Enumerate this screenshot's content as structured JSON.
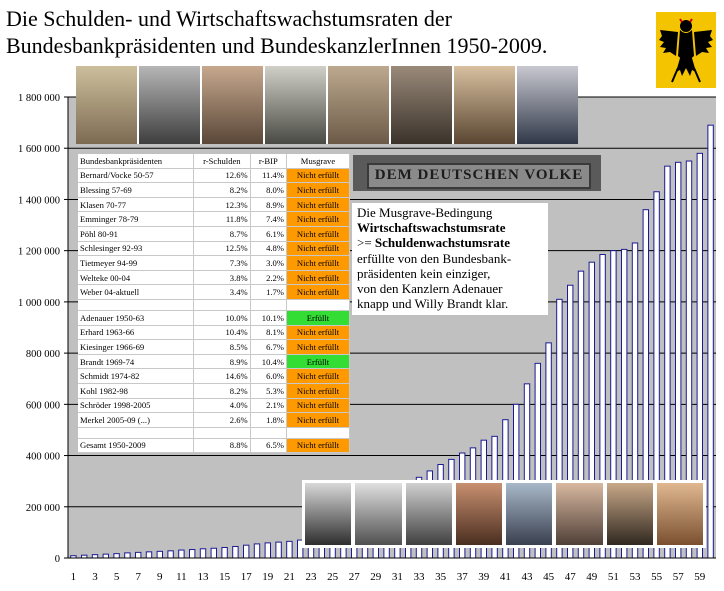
{
  "title_line1": "Die Schulden- und Wirtschaftswachstumsraten der",
  "title_line2": "Bundesbankpräsidenten und BundeskanzlerInnen 1950-2009.",
  "icons": {
    "coat_of_arms": "german-eagle-coat-of-arms",
    "portraits_top": "bundesbank-presidents-portrait-photos",
    "portraits_bottom": "chancellors-portrait-photos",
    "banner": "dem-deutschen-volke-inscription"
  },
  "banner_text": "DEM DEUTSCHEN VOLKE",
  "note": {
    "line1": "Die Musgrave-Bedingung",
    "line2": "Wirtschaftswachstumsrate",
    "line3_prefix": ">= ",
    "line3_bold": "Schuldenwachstumsrate",
    "line4": "erfüllte von den Bundesbank-",
    "line5": "präsidenten kein einziger,",
    "line6": "von den Kanzlern Adenauer",
    "line7": "knapp und Willy Brandt klar."
  },
  "table": {
    "header": [
      "Bundesbankpräsidenten",
      "r-Schulden",
      "r-BIP",
      "Musgrave"
    ],
    "presidents": [
      [
        "Bernard/Vocke 50-57",
        "12.6%",
        "11.4%",
        "Nicht erfüllt"
      ],
      [
        "Blessing 57-69",
        "8.2%",
        "8.0%",
        "Nicht erfüllt"
      ],
      [
        "Klasen 70-77",
        "12.3%",
        "8.9%",
        "Nicht erfüllt"
      ],
      [
        "Emminger 78-79",
        "11.8%",
        "7.4%",
        "Nicht erfüllt"
      ],
      [
        "Pöhl 80-91",
        "8.7%",
        "6.1%",
        "Nicht erfüllt"
      ],
      [
        "Schlesinger 92-93",
        "12.5%",
        "4.8%",
        "Nicht erfüllt"
      ],
      [
        "Tietmeyer 94-99",
        "7.3%",
        "3.0%",
        "Nicht erfüllt"
      ],
      [
        "Welteke 00-04",
        "3.8%",
        "2.2%",
        "Nicht erfüllt"
      ],
      [
        "Weber 04-aktuell",
        "3.4%",
        "1.7%",
        "Nicht erfüllt"
      ]
    ],
    "chancellors": [
      [
        "Adenauer 1950-63",
        "10.0%",
        "10.1%",
        "Erfüllt"
      ],
      [
        "Erhard 1963-66",
        "10.4%",
        "8.1%",
        "Nicht erfüllt"
      ],
      [
        "Kiesinger 1966-69",
        "8.5%",
        "6.7%",
        "Nicht erfüllt"
      ],
      [
        "Brandt 1969-74",
        "8.9%",
        "10.4%",
        "Erfüllt"
      ],
      [
        "Schmidt 1974-82",
        "14.6%",
        "6.0%",
        "Nicht erfüllt"
      ],
      [
        "Kohl 1982-98",
        "8.2%",
        "5.3%",
        "Nicht erfüllt"
      ],
      [
        "Schröder 1998-2005",
        "4.0%",
        "2.1%",
        "Nicht erfüllt"
      ],
      [
        "Merkel 2005-09 (...)",
        "2.6%",
        "1.8%",
        "Nicht erfüllt"
      ]
    ],
    "total": [
      "Gesamt 1950-2009",
      "8.8%",
      "6.5%",
      "Nicht erfüllt"
    ]
  },
  "colors": {
    "plot_bg": "#c0c0c0",
    "bar": "#1b1b94",
    "bar_face": "#ffffff",
    "nicht_erfuellt": "#ff9900",
    "erfuellt": "#33dd33"
  },
  "chart_data": {
    "type": "bar",
    "title": "",
    "xlabel": "",
    "ylabel": "",
    "ylim": [
      0,
      1800000
    ],
    "yticks": [
      0,
      200000,
      400000,
      600000,
      800000,
      1000000,
      1200000,
      1400000,
      1600000,
      1800000
    ],
    "ytick_labels": [
      "0",
      "200 000",
      "400 000",
      "600 000",
      "800 000",
      "1 000 000",
      "1 200 000",
      "1 400 000",
      "1 600 000",
      "1 800 000"
    ],
    "xtick_labels": [
      "1",
      "3",
      "5",
      "7",
      "9",
      "11",
      "13",
      "15",
      "17",
      "19",
      "21",
      "23",
      "25",
      "27",
      "29",
      "31",
      "33",
      "35",
      "37",
      "39",
      "41",
      "43",
      "45",
      "47",
      "49",
      "51",
      "53",
      "55",
      "57",
      "59"
    ],
    "grid": true,
    "categories": [
      1,
      2,
      3,
      4,
      5,
      6,
      7,
      8,
      9,
      10,
      11,
      12,
      13,
      14,
      15,
      16,
      17,
      18,
      19,
      20,
      21,
      22,
      23,
      24,
      25,
      26,
      27,
      28,
      29,
      30,
      31,
      32,
      33,
      34,
      35,
      36,
      37,
      38,
      39,
      40,
      41,
      42,
      43,
      44,
      45,
      46,
      47,
      48,
      49,
      50,
      51,
      52,
      53,
      54,
      55,
      56,
      57,
      58,
      59,
      60
    ],
    "values": [
      9000,
      11000,
      13000,
      15000,
      17000,
      20000,
      22000,
      24000,
      26000,
      28000,
      31000,
      33000,
      36000,
      38000,
      41000,
      45000,
      50000,
      55000,
      59000,
      62000,
      65000,
      70000,
      77000,
      95000,
      120000,
      145000,
      170000,
      195000,
      215000,
      235000,
      265000,
      290000,
      315000,
      340000,
      365000,
      385000,
      410000,
      430000,
      460000,
      475000,
      540000,
      600000,
      680000,
      760000,
      840000,
      1010000,
      1065000,
      1120000,
      1155000,
      1185000,
      1200000,
      1205000,
      1230000,
      1360000,
      1430000,
      1530000,
      1545000,
      1550000,
      1580000,
      1690000
    ]
  }
}
